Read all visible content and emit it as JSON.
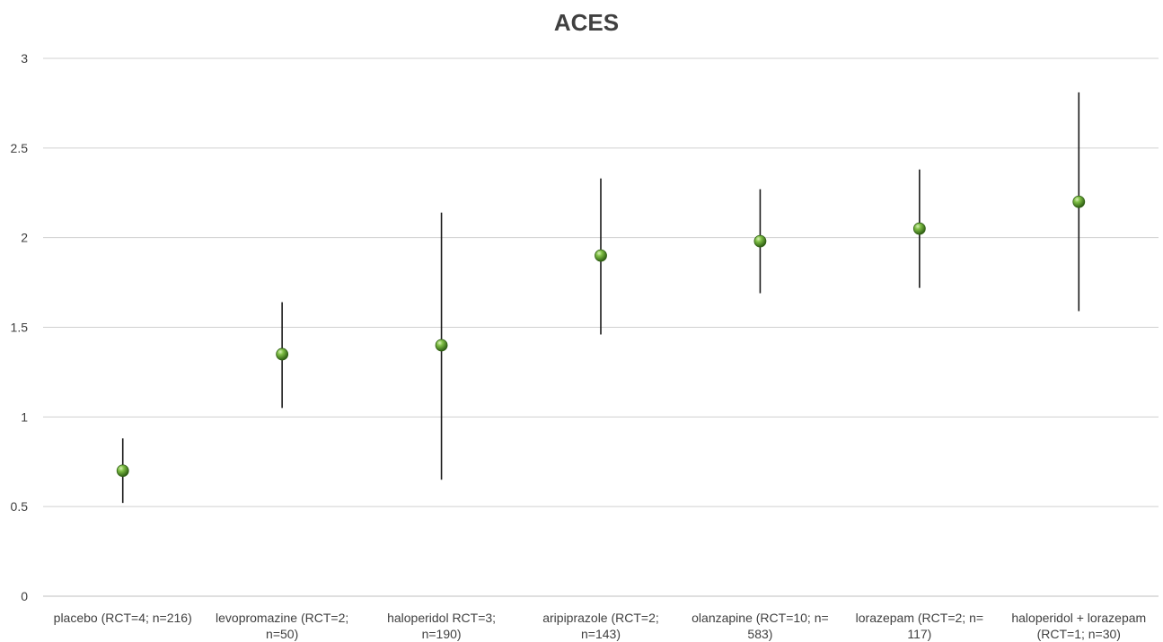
{
  "chart_data": {
    "type": "scatter",
    "title": "ACES",
    "xlabel": "",
    "ylabel": "",
    "ylim": [
      0,
      3
    ],
    "yticks": [
      0,
      0.5,
      1,
      1.5,
      2,
      2.5,
      3
    ],
    "ytick_labels": [
      "0",
      "0.5",
      "1",
      "1.5",
      "2",
      "2.5",
      "3"
    ],
    "grid": true,
    "legend": "none",
    "marker_color": "#5a9e2f",
    "categories": [
      [
        "placebo (RCT=4; n=216)"
      ],
      [
        "levopromazine (RCT=2;",
        "n=50)"
      ],
      [
        "haloperidol RCT=3;",
        "n=190)"
      ],
      [
        "aripiprazole (RCT=2;",
        "n=143)"
      ],
      [
        "olanzapine (RCT=10; n=",
        "583)"
      ],
      [
        "lorazepam (RCT=2; n=",
        "117)"
      ],
      [
        "haloperidol + lorazepam",
        "(RCT=1; n=30)"
      ]
    ],
    "values": [
      0.7,
      1.35,
      1.4,
      1.9,
      1.98,
      2.05,
      2.2
    ],
    "lower": [
      0.52,
      1.05,
      0.65,
      1.46,
      1.69,
      1.72,
      1.59
    ],
    "upper": [
      0.88,
      1.64,
      2.14,
      2.33,
      2.27,
      2.38,
      2.81
    ]
  }
}
